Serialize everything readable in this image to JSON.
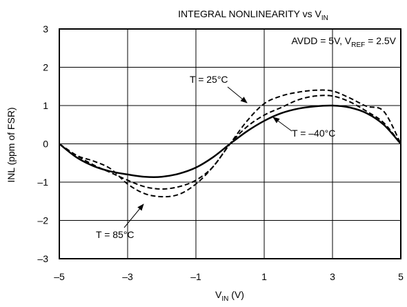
{
  "chart_data": {
    "type": "line",
    "title": {
      "main": "INTEGRAL NONLINEARITY vs V",
      "sub": "IN"
    },
    "xlabel": {
      "main": "V",
      "sub": "IN",
      "unit": " (V)"
    },
    "ylabel": "INL (ppm of FSR)",
    "xlim": [
      -5,
      5
    ],
    "ylim": [
      -3,
      3
    ],
    "x_ticks": [
      -5,
      -3,
      -1,
      1,
      3,
      5
    ],
    "x_tick_labels": [
      "–5",
      "–3",
      "–1",
      "1",
      "3",
      "5"
    ],
    "y_ticks": [
      3,
      2,
      1,
      0,
      -1,
      -2,
      -3
    ],
    "y_tick_labels": [
      "3",
      "2",
      "1",
      "0",
      "–1",
      "–2",
      "–3"
    ],
    "grid": true,
    "condition": {
      "prefix": "AVDD = 5V, V",
      "sub": "REF",
      "suffix": " = 2.5V"
    },
    "series": [
      {
        "name": "T = 25°C",
        "style": "dashed",
        "x": [
          -5,
          -4.5,
          -4,
          -3.5,
          -3,
          -2.5,
          -2,
          -1.5,
          -1,
          -0.5,
          0,
          0.5,
          1,
          1.5,
          2,
          2.5,
          3,
          3.5,
          4,
          4.5,
          5
        ],
        "y": [
          0,
          -0.3,
          -0.55,
          -0.75,
          -0.95,
          -1.12,
          -1.18,
          -1.12,
          -0.95,
          -0.6,
          0,
          0.45,
          0.75,
          0.95,
          1.15,
          1.25,
          1.25,
          1.1,
          0.85,
          0.55,
          0
        ]
      },
      {
        "name": "T = –40°C",
        "style": "solid",
        "x": [
          -5,
          -4.5,
          -4,
          -3.5,
          -3,
          -2.5,
          -2,
          -1.5,
          -1,
          -0.5,
          0,
          0.5,
          1,
          1.5,
          2,
          2.5,
          3,
          3.5,
          4,
          4.5,
          5
        ],
        "y": [
          0,
          -0.35,
          -0.58,
          -0.72,
          -0.8,
          -0.86,
          -0.86,
          -0.78,
          -0.62,
          -0.35,
          0,
          0.33,
          0.6,
          0.8,
          0.92,
          0.98,
          1.0,
          0.95,
          0.8,
          0.5,
          0
        ]
      },
      {
        "name": "T = 85°C",
        "style": "dashed",
        "x": [
          -5,
          -4.5,
          -4,
          -3.5,
          -3,
          -2.5,
          -2,
          -1.5,
          -1,
          -0.5,
          0,
          0.5,
          1,
          1.5,
          2,
          2.5,
          3,
          3.5,
          4,
          4.5,
          5
        ],
        "y": [
          0,
          -0.3,
          -0.45,
          -0.65,
          -1.05,
          -1.3,
          -1.38,
          -1.32,
          -1.05,
          -0.6,
          0,
          0.6,
          1.05,
          1.25,
          1.35,
          1.4,
          1.38,
          1.2,
          0.98,
          0.85,
          0
        ]
      }
    ],
    "annotations": [
      {
        "text": "T = 25°C",
        "series": 0
      },
      {
        "text": "T = –40°C",
        "series": 1
      },
      {
        "text": "T = 85°C",
        "series": 2
      }
    ]
  }
}
